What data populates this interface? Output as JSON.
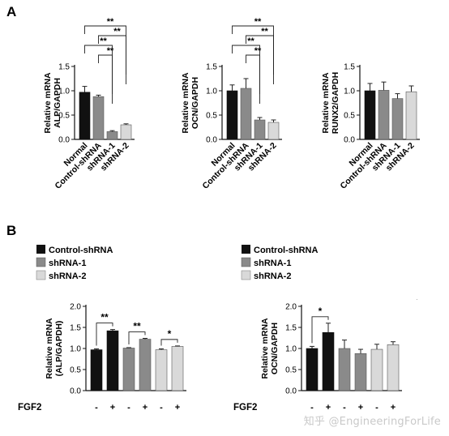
{
  "panels": {
    "a": "A",
    "b": "B"
  },
  "sig": {
    "double": "**",
    "single": "*"
  },
  "panel_a": {
    "ylabel_line2": [
      "ALP/GAPDH",
      "OCN/GAPDH",
      "RUNX2/GAPDH"
    ]
  },
  "panel_b": {
    "legend": [
      "Control-shRNA",
      "shRNA-1",
      "shRNA-2"
    ],
    "fgf2_label": "FGF2",
    "fgf2_signs": [
      "-",
      "+",
      "-",
      "+",
      "-",
      "+"
    ],
    "ylabel_alp": [
      "Relative mRNA",
      "(ALP/GAPDH)"
    ],
    "ylabel_ocn": [
      "Relative mRNA",
      "OCN/GAPDH"
    ]
  },
  "colors": {
    "black": "#111111",
    "gray": "#8a8a8a",
    "light": "#d9d9d9"
  },
  "watermark": "知乎 @EngineeringForLife",
  "chart_data": [
    {
      "panel": "A",
      "type": "bar",
      "title": "ALP",
      "categories": [
        "Normal",
        "Control-shRNA",
        "shRNA-1",
        "shRNA-2"
      ],
      "values": [
        0.97,
        0.88,
        0.16,
        0.3
      ],
      "errors": [
        0.12,
        0.03,
        0.02,
        0.02
      ],
      "ylabel": "Relative mRNA ALP/GAPDH",
      "ylim": [
        0,
        1.5
      ],
      "yticks": [
        0.0,
        0.5,
        1.0,
        1.5
      ],
      "significance": [
        {
          "from": 1,
          "to": 2,
          "label": "**"
        },
        {
          "from": 0,
          "to": 2,
          "label": "**"
        },
        {
          "from": 1,
          "to": 3,
          "label": "**"
        },
        {
          "from": 0,
          "to": 3,
          "label": "**"
        }
      ]
    },
    {
      "panel": "A",
      "type": "bar",
      "title": "OCN",
      "categories": [
        "Normal",
        "Control-shRNA",
        "shRNA-1",
        "shRNA-2"
      ],
      "values": [
        1.0,
        1.05,
        0.4,
        0.35
      ],
      "errors": [
        0.12,
        0.2,
        0.05,
        0.05
      ],
      "ylabel": "Relative mRNA OCN/GAPDH",
      "ylim": [
        0,
        1.5
      ],
      "yticks": [
        0.0,
        0.5,
        1.0,
        1.5
      ],
      "significance": [
        {
          "from": 1,
          "to": 2,
          "label": "**"
        },
        {
          "from": 0,
          "to": 2,
          "label": "**"
        },
        {
          "from": 1,
          "to": 3,
          "label": "**"
        },
        {
          "from": 0,
          "to": 3,
          "label": "**"
        }
      ]
    },
    {
      "panel": "A",
      "type": "bar",
      "title": "RUNX2",
      "categories": [
        "Normal",
        "Control-shRNA",
        "shRNA-1",
        "shRNA-2"
      ],
      "values": [
        1.0,
        1.01,
        0.84,
        0.98
      ],
      "errors": [
        0.15,
        0.17,
        0.1,
        0.12
      ],
      "ylabel": "Relative mRNA RUNX2/GAPDH",
      "ylim": [
        0,
        1.5
      ],
      "yticks": [
        0.0,
        0.5,
        1.0,
        1.5
      ],
      "significance": []
    },
    {
      "panel": "B",
      "type": "bar",
      "title": "ALP",
      "categories": [
        "-",
        "+",
        "-",
        "+",
        "-",
        "+"
      ],
      "groups": [
        "Control-shRNA",
        "Control-shRNA",
        "shRNA-1",
        "shRNA-1",
        "shRNA-2",
        "shRNA-2"
      ],
      "values": [
        0.97,
        1.42,
        1.01,
        1.22,
        0.97,
        1.05
      ],
      "errors": [
        0.02,
        0.03,
        0.01,
        0.02,
        0.02,
        0.01
      ],
      "ylabel": "Relative mRNA (ALP/GAPDH)",
      "xlabel": "FGF2",
      "ylim": [
        0,
        2.0
      ],
      "yticks": [
        0.0,
        0.5,
        1.0,
        1.5,
        2.0
      ],
      "legend_position": "top-left",
      "significance": [
        {
          "from": 0,
          "to": 1,
          "label": "**"
        },
        {
          "from": 2,
          "to": 3,
          "label": "**"
        },
        {
          "from": 4,
          "to": 5,
          "label": "*"
        }
      ]
    },
    {
      "panel": "B",
      "type": "bar",
      "title": "OCN",
      "categories": [
        "-",
        "+",
        "-",
        "+",
        "-",
        "+"
      ],
      "groups": [
        "Control-shRNA",
        "Control-shRNA",
        "shRNA-1",
        "shRNA-1",
        "shRNA-2",
        "shRNA-2"
      ],
      "values": [
        1.0,
        1.38,
        1.0,
        0.88,
        0.98,
        1.09
      ],
      "errors": [
        0.05,
        0.22,
        0.2,
        0.1,
        0.12,
        0.07
      ],
      "ylabel": "Relative mRNA OCN/GAPDH",
      "xlabel": "FGF2",
      "ylim": [
        0,
        2.0
      ],
      "yticks": [
        0.0,
        0.5,
        1.0,
        1.5,
        2.0
      ],
      "legend_position": "top-left",
      "significance": [
        {
          "from": 0,
          "to": 1,
          "label": "*"
        }
      ]
    }
  ]
}
